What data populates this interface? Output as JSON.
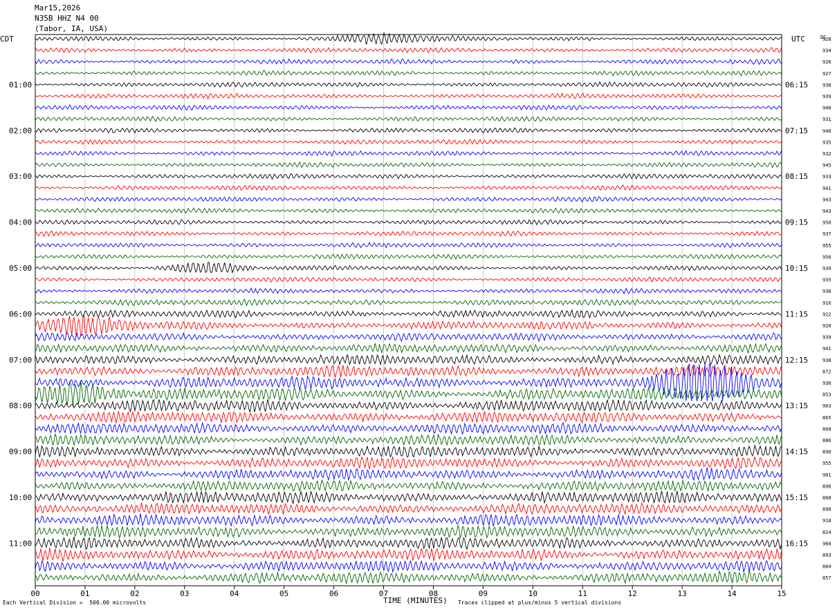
{
  "header": {
    "date": "Mar15,2026",
    "station": "N35B HHZ N4 00",
    "location": "(Tabor, IA, USA)"
  },
  "left_axis_title": "CDT",
  "right_axis_title": "UTC",
  "dc_title": "DC",
  "chart_data": {
    "type": "line",
    "description_kind": "helicorder",
    "x_label": "TIME (MINUTES)",
    "x_ticks": [
      "00",
      "01",
      "02",
      "03",
      "04",
      "05",
      "06",
      "07",
      "08",
      "09",
      "10",
      "11",
      "12",
      "13",
      "14",
      "15"
    ],
    "xlim": [
      0,
      15
    ],
    "row_minutes": 15,
    "trace_colors": [
      "#000000",
      "#ff0000",
      "#0000ff",
      "#006400"
    ],
    "left_time_labels": [
      {
        "row": 4,
        "label": "01:00"
      },
      {
        "row": 8,
        "label": "02:00"
      },
      {
        "row": 12,
        "label": "03:00"
      },
      {
        "row": 16,
        "label": "04:00"
      },
      {
        "row": 20,
        "label": "05:00"
      },
      {
        "row": 24,
        "label": "06:00"
      },
      {
        "row": 28,
        "label": "07:00"
      },
      {
        "row": 32,
        "label": "08:00"
      },
      {
        "row": 36,
        "label": "09:00"
      },
      {
        "row": 40,
        "label": "10:00"
      },
      {
        "row": 44,
        "label": "11:00"
      }
    ],
    "right_time_labels": [
      {
        "row": 4,
        "label": "06:15"
      },
      {
        "row": 8,
        "label": "07:15"
      },
      {
        "row": 12,
        "label": "08:15"
      },
      {
        "row": 16,
        "label": "09:15"
      },
      {
        "row": 20,
        "label": "10:15"
      },
      {
        "row": 24,
        "label": "11:15"
      },
      {
        "row": 28,
        "label": "12:15"
      },
      {
        "row": 32,
        "label": "13:15"
      },
      {
        "row": 36,
        "label": "14:15"
      },
      {
        "row": 40,
        "label": "15:15"
      },
      {
        "row": 44,
        "label": "16:15"
      }
    ],
    "dc_offsets": [
      "928",
      "934",
      "926",
      "927",
      "938",
      "939",
      "940",
      "931",
      "940",
      "935",
      "932",
      "945",
      "933",
      "941",
      "943",
      "943",
      "950",
      "937",
      "955",
      "956",
      "939",
      "935",
      "936",
      "916",
      "922",
      "920",
      "939",
      "941",
      "938",
      "872",
      "936",
      "853",
      "903",
      "865",
      "868",
      "886",
      "890",
      "955",
      "901",
      "896",
      "868",
      "898",
      "918",
      "824",
      "960",
      "893",
      "884",
      "857"
    ],
    "row_amplitude_level": [
      1,
      1,
      1,
      1,
      1,
      1,
      1,
      1,
      1,
      1,
      1,
      1,
      1,
      1,
      1,
      1,
      1,
      1,
      1,
      1,
      1,
      1,
      1,
      1.3,
      1.6,
      1.8,
      1.7,
      1.9,
      2.2,
      2.4,
      2.6,
      2.6,
      2.5,
      2.4,
      2.4,
      2.3,
      2.4,
      2.3,
      2.3,
      2.3,
      2.5,
      2.4,
      2.4,
      2.5,
      2.5,
      2.5,
      2.4,
      2.4
    ],
    "events": [
      {
        "row": 0,
        "minute": 7.0,
        "amplitude": 2.2
      },
      {
        "row": 20,
        "minute": 3.4,
        "amplitude": 2.6
      },
      {
        "row": 25,
        "minute": 1.0,
        "amplitude": 2.0
      },
      {
        "row": 30,
        "minute": 13.5,
        "amplitude": 4.5
      },
      {
        "row": 31,
        "minute": 0.8,
        "amplitude": 2.0
      }
    ],
    "scale_note": "Each Vertical Division =  500.00 microvolts",
    "clip_note": "Traces clipped at plus/minus 5 vertical divisions"
  }
}
